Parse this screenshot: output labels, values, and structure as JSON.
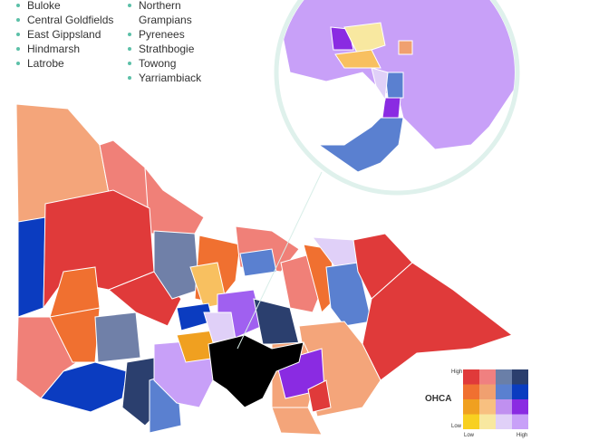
{
  "legend_list": {
    "items": [
      "Buloke",
      "Central Goldfields",
      "East Gippsland",
      "Hindmarsh",
      "Latrobe",
      "Northern Grampians",
      "Pyrenees",
      "Strathbogie",
      "Towong",
      "Yarriambiack"
    ]
  },
  "legend": {
    "title": "OHCA",
    "y_high": "High",
    "y_low": "Low",
    "x_low": "Low",
    "x_high": "High"
  }
}
